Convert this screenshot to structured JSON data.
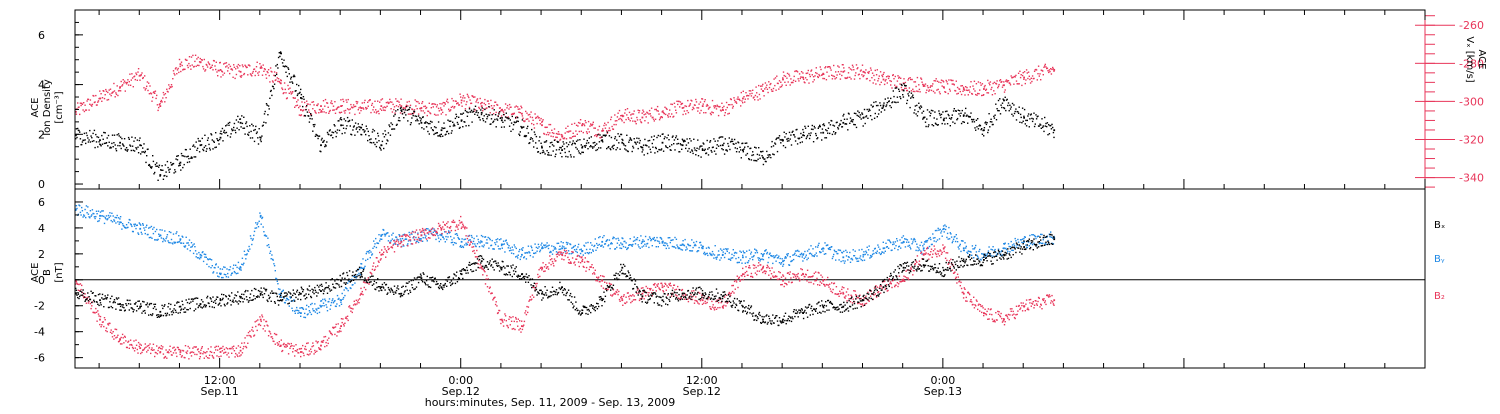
{
  "colors": {
    "black": "#000000",
    "pink": "#e8365a",
    "blue": "#1e88e5"
  },
  "x_axis": {
    "tick_labels": [
      {
        "time": "12:00",
        "date": "Sep.11",
        "hour": 12
      },
      {
        "time": "0:00",
        "date": "Sep.12",
        "hour": 24
      },
      {
        "time": "12:00",
        "date": "Sep.12",
        "hour": 36
      },
      {
        "time": "0:00",
        "date": "Sep.13",
        "hour": 48
      }
    ],
    "title": "hours:minutes, Sep. 11, 2009 - Sep. 13, 2009"
  },
  "chart_data": [
    {
      "type": "scatter",
      "panel": "top",
      "title": "",
      "xlabel": "hours:minutes, Sep. 11, 2009 - Sep. 13, 2009",
      "xlim_hours": [
        4.8,
        72
      ],
      "left_axis": {
        "label_line1": "ACE",
        "label_line2": "Ion Density",
        "label_line3": "[cm⁻³]",
        "ylim": [
          -0.2,
          7
        ],
        "ticks": [
          0,
          2,
          4,
          6
        ]
      },
      "right_axis": {
        "label_line1": "ACE",
        "label_line2": "Vₓ [km/s]",
        "ylim": [
          -346,
          -252
        ],
        "ticks": [
          -340,
          -320,
          -300,
          -280,
          -260
        ]
      },
      "series": [
        {
          "axis": "left",
          "color": "black",
          "x_hours": [
            4.8,
            6,
            7,
            8,
            9,
            10,
            11,
            12,
            13,
            14,
            15,
            16,
            17,
            18,
            19,
            20,
            21,
            22,
            23,
            24,
            25,
            26,
            27,
            28,
            29,
            30,
            31,
            32,
            33,
            34,
            35,
            36,
            37,
            38,
            39,
            40,
            41,
            42,
            43,
            44,
            45,
            46,
            47,
            48,
            49,
            50,
            51,
            52,
            53.5
          ],
          "values": [
            2.0,
            1.8,
            1.7,
            1.6,
            0.4,
            0.9,
            1.6,
            1.9,
            2.5,
            1.9,
            5.3,
            3.5,
            1.6,
            2.4,
            2.3,
            1.6,
            3.0,
            2.5,
            2.2,
            2.6,
            2.9,
            2.6,
            2.3,
            1.5,
            1.4,
            1.5,
            1.8,
            1.7,
            1.5,
            1.7,
            1.6,
            1.4,
            1.6,
            1.4,
            1.1,
            1.8,
            2.0,
            2.1,
            2.5,
            2.7,
            3.2,
            3.8,
            2.7,
            2.6,
            2.8,
            2.2,
            3.4,
            2.7,
            2.2
          ]
        },
        {
          "axis": "right",
          "color": "pink",
          "x_hours": [
            4.8,
            6,
            7,
            8,
            9,
            10,
            11,
            12,
            13,
            14,
            15,
            16,
            17,
            18,
            19,
            20,
            21,
            22,
            23,
            24,
            25,
            26,
            27,
            28,
            29,
            30,
            31,
            32,
            33,
            34,
            35,
            36,
            37,
            38,
            39,
            40,
            41,
            42,
            43,
            44,
            45,
            46,
            47,
            48,
            49,
            50,
            51,
            52,
            53.5
          ],
          "values": [
            -305,
            -298,
            -292,
            -286,
            -302,
            -280,
            -279,
            -283,
            -284,
            -282,
            -290,
            -304,
            -302,
            -302,
            -303,
            -302,
            -302,
            -303,
            -304,
            -299,
            -302,
            -304,
            -306,
            -312,
            -318,
            -312,
            -315,
            -307,
            -308,
            -305,
            -303,
            -302,
            -304,
            -298,
            -294,
            -288,
            -287,
            -285,
            -284,
            -284,
            -288,
            -290,
            -291,
            -292,
            -293,
            -293,
            -291,
            -287,
            -283
          ]
        }
      ]
    },
    {
      "type": "scatter",
      "panel": "bottom",
      "title": "",
      "xlim_hours": [
        4.8,
        72
      ],
      "left_axis": {
        "label_line1": "ACE",
        "label_line2": "B",
        "label_line3": "[nT]",
        "ylim": [
          -6.8,
          7
        ],
        "ticks": [
          -6,
          -4,
          -2,
          0,
          2,
          4,
          6
        ]
      },
      "legend": [
        {
          "label": "Bₓ",
          "color": "black"
        },
        {
          "label": "Bᵧ",
          "color": "blue"
        },
        {
          "label": "B₂",
          "color": "pink"
        }
      ],
      "series": [
        {
          "name": "Bₓ",
          "color": "black",
          "x_hours": [
            4.8,
            6,
            7,
            8,
            9,
            10,
            11,
            12,
            13,
            14,
            15,
            16,
            17,
            18,
            19,
            20,
            21,
            22,
            23,
            24,
            25,
            26,
            27,
            28,
            29,
            30,
            31,
            32,
            33,
            34,
            35,
            36,
            37,
            38,
            39,
            40,
            41,
            42,
            43,
            44,
            45,
            46,
            47,
            48,
            49,
            50,
            51,
            52,
            53.5
          ],
          "values": [
            -1.0,
            -1.5,
            -1.8,
            -2.0,
            -2.4,
            -2.0,
            -1.8,
            -1.5,
            -1.3,
            -1.0,
            -1.5,
            -1.0,
            -0.8,
            0.0,
            0.6,
            -0.5,
            -1.0,
            0.2,
            -0.5,
            0.5,
            1.5,
            1.0,
            0.5,
            -1.0,
            -0.5,
            -2.5,
            -1.5,
            1.0,
            -1.2,
            -1.5,
            -1.0,
            -1.0,
            -1.2,
            -2.0,
            -3.0,
            -3.0,
            -2.5,
            -2.0,
            -2.0,
            -1.5,
            -0.5,
            1.0,
            1.2,
            0.8,
            1.5,
            1.6,
            2.0,
            2.6,
            3.2
          ]
        },
        {
          "name": "Bᵧ",
          "color": "blue",
          "x_hours": [
            4.8,
            6,
            7,
            8,
            9,
            10,
            11,
            12,
            13,
            14,
            15,
            16,
            17,
            18,
            19,
            20,
            21,
            22,
            23,
            24,
            25,
            26,
            27,
            28,
            29,
            30,
            31,
            32,
            33,
            34,
            35,
            36,
            37,
            38,
            39,
            40,
            41,
            42,
            43,
            44,
            45,
            46,
            47,
            48,
            49,
            50,
            51,
            52,
            53.5
          ],
          "values": [
            5.5,
            5.0,
            4.5,
            4.0,
            3.5,
            3.2,
            2.0,
            0.5,
            1.0,
            5.0,
            -1.0,
            -2.5,
            -2.0,
            -1.5,
            1.0,
            3.5,
            3.0,
            3.5,
            3.5,
            3.0,
            3.0,
            2.8,
            2.0,
            2.5,
            2.5,
            2.3,
            3.0,
            2.8,
            3.0,
            3.0,
            2.8,
            2.5,
            2.0,
            1.8,
            2.0,
            1.5,
            2.0,
            2.5,
            1.8,
            2.0,
            2.5,
            3.0,
            2.5,
            4.0,
            2.5,
            2.0,
            2.5,
            3.0,
            3.3
          ]
        },
        {
          "name": "B₂",
          "color": "pink",
          "x_hours": [
            4.8,
            6,
            7,
            8,
            9,
            10,
            11,
            12,
            13,
            14,
            15,
            16,
            17,
            18,
            19,
            20,
            21,
            22,
            23,
            24,
            25,
            26,
            27,
            28,
            29,
            30,
            31,
            32,
            33,
            34,
            35,
            36,
            37,
            38,
            39,
            40,
            41,
            42,
            43,
            44,
            45,
            46,
            47,
            48,
            49,
            50,
            51,
            52,
            53.5
          ],
          "values": [
            0.0,
            -3.0,
            -4.5,
            -5.2,
            -5.5,
            -5.5,
            -5.6,
            -5.5,
            -5.4,
            -3.0,
            -5.0,
            -5.5,
            -5.0,
            -3.5,
            -1.0,
            2.0,
            3.0,
            3.5,
            4.0,
            4.5,
            1.0,
            -3.0,
            -3.5,
            1.0,
            2.0,
            1.5,
            0.0,
            -1.5,
            -1.0,
            -0.5,
            -1.0,
            -1.5,
            -2.0,
            0.5,
            1.0,
            0.0,
            0.5,
            0.0,
            -1.0,
            -1.5,
            -0.5,
            0.0,
            2.0,
            2.5,
            -1.0,
            -2.5,
            -3.0,
            -2.0,
            -1.5
          ]
        }
      ]
    }
  ]
}
